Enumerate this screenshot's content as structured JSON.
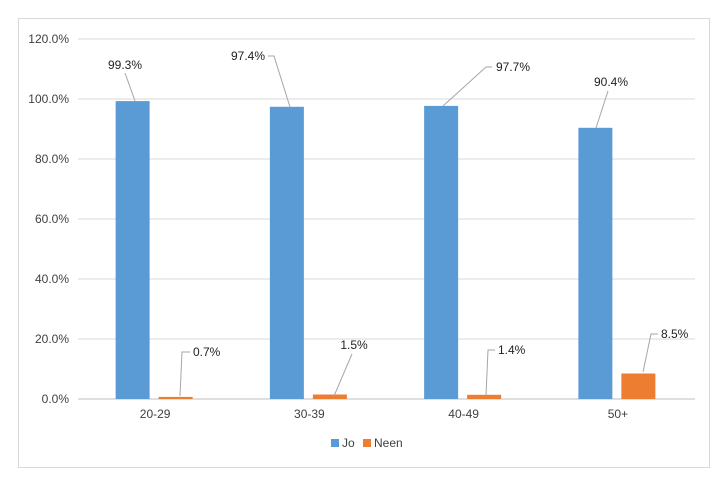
{
  "chart_data": {
    "type": "bar",
    "categories": [
      "20-29",
      "30-39",
      "40-49",
      "50+"
    ],
    "series": [
      {
        "name": "Jo",
        "values": [
          99.3,
          97.4,
          97.7,
          90.4
        ],
        "labels": [
          "99.3%",
          "97.4%",
          "97.7%",
          "90.4%"
        ]
      },
      {
        "name": "Neen",
        "values": [
          0.7,
          1.5,
          1.4,
          8.5
        ],
        "labels": [
          "0.7%",
          "1.5%",
          "1.4%",
          "8.5%"
        ]
      }
    ],
    "ylim": [
      0,
      120
    ],
    "yticks": [
      "0.0%",
      "20.0%",
      "40.0%",
      "60.0%",
      "80.0%",
      "100.0%",
      "120.0%"
    ],
    "title": "",
    "xlabel": "",
    "ylabel": "",
    "grid": true,
    "legend": "bottom-center",
    "colors": {
      "Jo": "#5b9bd5",
      "Neen": "#ed7d31",
      "grid": "#d9d9d9",
      "axis": "#bfbfbf"
    }
  }
}
